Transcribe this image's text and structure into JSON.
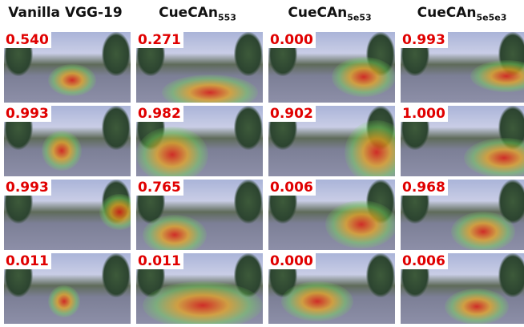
{
  "headers": [
    {
      "text": "Vanilla VGG-19"
    },
    {
      "text": "CueCAn",
      "sub": "553"
    },
    {
      "text": "CueCAn",
      "sub": "5e53"
    },
    {
      "text": "CueCAn",
      "sub": "5e5e3"
    }
  ],
  "grid": {
    "rows": [
      [
        "0.540",
        "0.271",
        "0.000",
        "0.993"
      ],
      [
        "0.993",
        "0.982",
        "0.902",
        "1.000"
      ],
      [
        "0.993",
        "0.765",
        "0.006",
        "0.968"
      ],
      [
        "0.011",
        "0.011",
        "0.000",
        "0.006"
      ]
    ]
  }
}
